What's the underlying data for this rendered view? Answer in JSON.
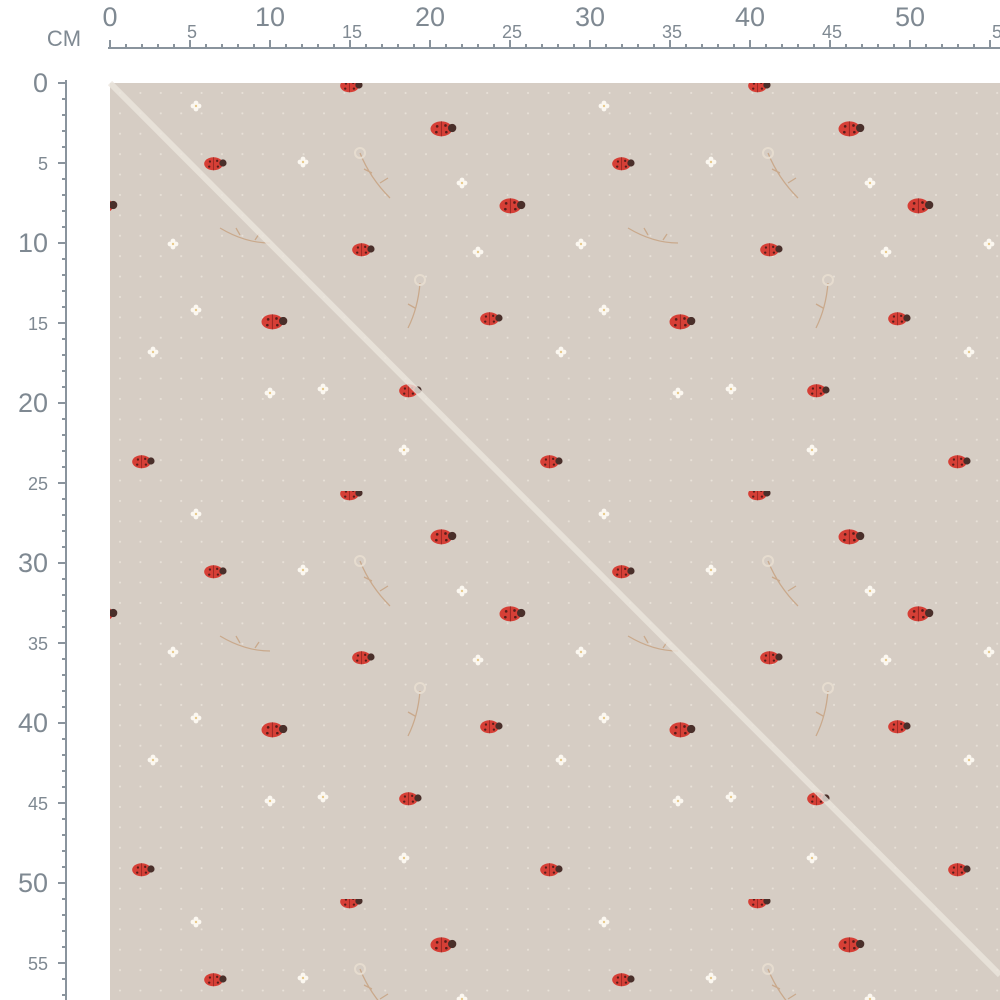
{
  "ruler": {
    "unit": "CM",
    "top_labels": [
      0,
      5,
      10,
      15,
      20,
      25,
      30,
      35,
      40,
      45,
      50,
      55
    ],
    "left_labels": [
      0,
      5,
      10,
      15,
      20,
      25,
      30,
      35,
      40,
      45,
      50,
      55
    ]
  }
}
